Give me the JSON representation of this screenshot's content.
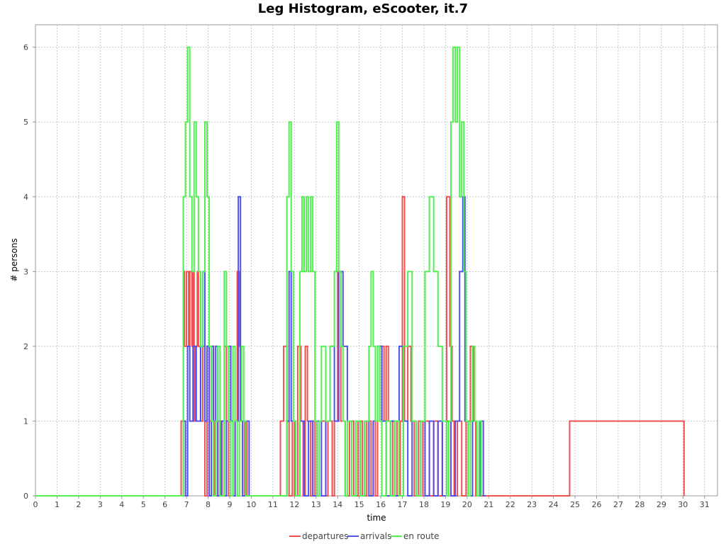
{
  "chart_data": {
    "type": "line",
    "title": "Leg Histogram, eScooter, it.7",
    "xlabel": "time",
    "ylabel": "# persons",
    "xlim": [
      0,
      31.6
    ],
    "ylim": [
      0,
      6.3
    ],
    "x_ticks": [
      "0",
      "1",
      "2",
      "3",
      "4",
      "5",
      "6",
      "7",
      "8",
      "9",
      "10",
      "11",
      "12",
      "13",
      "14",
      "15",
      "16",
      "17",
      "18",
      "19",
      "20",
      "21",
      "22",
      "23",
      "24",
      "25",
      "26",
      "27",
      "28",
      "29",
      "30",
      "31"
    ],
    "y_ticks": [
      "0",
      "1",
      "2",
      "3",
      "4",
      "5",
      "6"
    ],
    "grid": true,
    "legend_position": "bottom",
    "series": [
      {
        "name": "departures",
        "color": "#f05050",
        "x": [
          0,
          6.75,
          6.85,
          6.9,
          7.0,
          7.1,
          7.15,
          7.25,
          7.3,
          7.35,
          7.4,
          7.5,
          7.55,
          7.65,
          7.75,
          7.85,
          7.95,
          8.05,
          8.15,
          8.25,
          8.3,
          8.35,
          8.45,
          8.55,
          8.65,
          8.75,
          8.85,
          8.95,
          9.05,
          9.15,
          9.25,
          9.35,
          9.45,
          9.5,
          9.6,
          9.7,
          9.8,
          9.9,
          9.95,
          10.0,
          11.35,
          11.5,
          11.65,
          11.75,
          11.9,
          12.0,
          12.15,
          12.3,
          12.4,
          12.5,
          12.6,
          12.75,
          12.85,
          12.95,
          13.05,
          13.45,
          13.55,
          13.75,
          13.85,
          14.0,
          14.15,
          14.35,
          14.55,
          14.75,
          14.95,
          15.15,
          15.35,
          15.55,
          15.65,
          15.75,
          15.85,
          15.95,
          16.05,
          16.15,
          16.25,
          16.35,
          16.55,
          16.75,
          16.85,
          16.9,
          17.0,
          17.1,
          17.25,
          17.4,
          17.55,
          17.75,
          17.95,
          18.05,
          18.25,
          18.45,
          18.65,
          18.85,
          19.05,
          19.2,
          19.3,
          19.4,
          19.55,
          19.75,
          19.95,
          20.15,
          20.3,
          20.4,
          24.65,
          24.75,
          30.05
        ],
        "y": [
          0,
          1,
          3,
          2,
          3,
          2,
          3,
          2,
          3,
          1,
          2,
          3,
          2,
          1,
          2,
          0,
          2,
          1,
          2,
          0,
          1,
          0,
          1,
          0,
          1,
          2,
          1,
          0,
          1,
          0,
          1,
          3,
          2,
          1,
          0,
          1,
          0,
          0,
          0,
          0,
          1,
          2,
          1,
          0,
          1,
          0,
          2,
          1,
          0,
          2,
          1,
          0,
          1,
          0,
          1,
          0,
          1,
          0,
          1,
          3,
          1,
          0,
          1,
          0,
          1,
          0,
          1,
          0,
          1,
          0,
          2,
          1,
          2,
          1,
          2,
          1,
          0,
          1,
          0,
          1,
          4,
          1,
          2,
          1,
          0,
          1,
          0,
          1,
          0,
          1,
          0,
          1,
          4,
          2,
          1,
          0,
          1,
          0,
          1,
          2,
          1,
          0,
          0,
          1,
          0
        ],
        "step": true
      },
      {
        "name": "arrivals",
        "color": "#5050f0",
        "x": [
          0,
          6.85,
          6.95,
          7.05,
          7.15,
          7.3,
          7.45,
          7.65,
          7.75,
          7.85,
          7.95,
          8.05,
          8.15,
          8.25,
          8.35,
          8.45,
          8.6,
          8.75,
          8.85,
          8.95,
          9.05,
          9.15,
          9.25,
          9.4,
          9.5,
          9.6,
          9.75,
          9.9,
          10.0,
          11.55,
          11.65,
          11.75,
          11.85,
          12.05,
          12.25,
          12.45,
          12.65,
          12.85,
          13.05,
          13.25,
          13.45,
          13.65,
          13.85,
          14.05,
          14.25,
          14.45,
          14.65,
          14.85,
          15.05,
          15.25,
          15.45,
          15.65,
          15.85,
          16.05,
          16.25,
          16.45,
          16.65,
          16.85,
          17.05,
          17.25,
          17.45,
          17.65,
          17.85,
          18.05,
          18.25,
          18.45,
          18.65,
          18.85,
          19.05,
          19.25,
          19.45,
          19.65,
          19.8,
          19.9,
          20.05,
          20.25,
          20.45,
          20.6,
          20.75,
          20.85
        ],
        "y": [
          0,
          1,
          0,
          2,
          1,
          2,
          1,
          2,
          3,
          1,
          2,
          0,
          2,
          1,
          2,
          0,
          1,
          0,
          1,
          2,
          1,
          0,
          1,
          4,
          1,
          0,
          1,
          0,
          0,
          0,
          1,
          3,
          1,
          0,
          1,
          0,
          1,
          0,
          1,
          0,
          1,
          2,
          1,
          3,
          2,
          1,
          0,
          1,
          0,
          1,
          0,
          1,
          2,
          1,
          0,
          1,
          0,
          2,
          1,
          0,
          1,
          0,
          1,
          0,
          1,
          0,
          1,
          0,
          1,
          0,
          1,
          3,
          4,
          1,
          0,
          1,
          0,
          1,
          0,
          0
        ],
        "step": true
      },
      {
        "name": "en route",
        "color": "#50f050",
        "x": [
          0,
          6.85,
          6.95,
          7.05,
          7.15,
          7.25,
          7.35,
          7.45,
          7.55,
          7.65,
          7.75,
          7.85,
          7.95,
          8.05,
          8.15,
          8.25,
          8.35,
          8.45,
          8.55,
          8.75,
          8.85,
          8.95,
          9.05,
          9.15,
          9.25,
          9.35,
          9.45,
          9.55,
          9.65,
          9.75,
          9.85,
          11.55,
          11.65,
          11.75,
          11.85,
          11.95,
          12.05,
          12.25,
          12.35,
          12.45,
          12.55,
          12.65,
          12.75,
          12.85,
          12.95,
          13.05,
          13.15,
          13.25,
          13.45,
          13.65,
          13.85,
          13.95,
          14.05,
          14.15,
          14.25,
          14.35,
          14.45,
          14.65,
          14.85,
          15.05,
          15.25,
          15.45,
          15.55,
          15.65,
          15.75,
          15.85,
          15.95,
          16.05,
          16.25,
          16.45,
          16.65,
          16.85,
          17.05,
          17.25,
          17.45,
          17.65,
          17.85,
          18.05,
          18.25,
          18.45,
          18.65,
          18.85,
          19.05,
          19.15,
          19.25,
          19.35,
          19.45,
          19.55,
          19.65,
          19.75,
          19.85,
          19.95,
          20.05,
          20.15,
          20.25,
          20.35,
          20.45,
          20.55,
          20.65
        ],
        "y": [
          0,
          4,
          5,
          6,
          4,
          3,
          5,
          4,
          3,
          2,
          3,
          5,
          4,
          2,
          1,
          0,
          1,
          2,
          0,
          3,
          2,
          1,
          0,
          2,
          1,
          0,
          1,
          2,
          1,
          0,
          0,
          0,
          4,
          5,
          3,
          1,
          0,
          3,
          4,
          3,
          4,
          3,
          4,
          3,
          1,
          0,
          1,
          2,
          1,
          2,
          3,
          5,
          3,
          2,
          1,
          0,
          1,
          0,
          1,
          0,
          1,
          2,
          3,
          2,
          1,
          2,
          1,
          0,
          1,
          0,
          1,
          0,
          2,
          3,
          1,
          0,
          1,
          3,
          4,
          3,
          2,
          1,
          0,
          1,
          5,
          6,
          5,
          6,
          4,
          5,
          3,
          1,
          0,
          1,
          2,
          1,
          0,
          1,
          0
        ],
        "step": true
      }
    ]
  },
  "legend": {
    "items": [
      {
        "label": "departures",
        "color": "#f05050"
      },
      {
        "label": "arrivals",
        "color": "#5050f0"
      },
      {
        "label": "en route",
        "color": "#50f050"
      }
    ]
  }
}
